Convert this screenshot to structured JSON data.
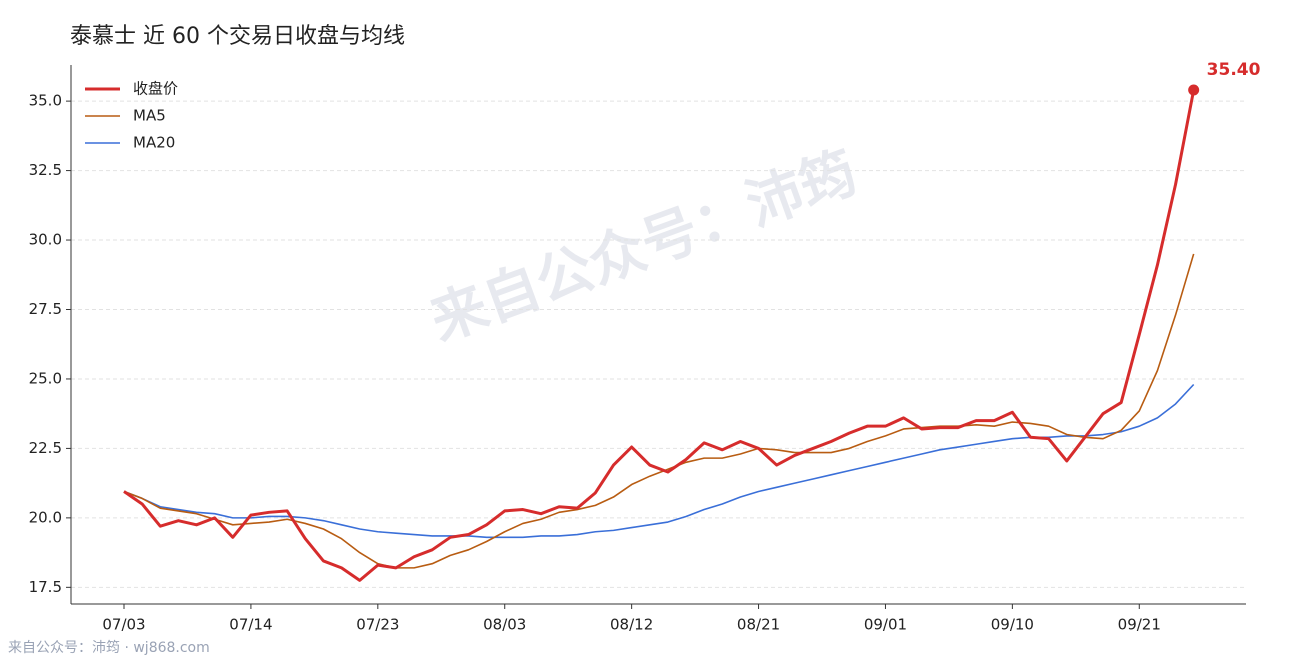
{
  "chart_data": {
    "type": "line",
    "title": "泰慕士 近 60 个交易日收盘与均线",
    "watermark": "来自公众号：沛筠",
    "footer": "来自公众号：沛筠 · wj868.com",
    "categories": [
      "07/03",
      null,
      null,
      null,
      null,
      null,
      null,
      "07/14",
      null,
      null,
      null,
      null,
      null,
      null,
      "07/23",
      null,
      null,
      null,
      null,
      null,
      null,
      "08/03",
      null,
      null,
      null,
      null,
      null,
      null,
      "08/12",
      null,
      null,
      null,
      null,
      null,
      null,
      "08/21",
      null,
      null,
      null,
      null,
      null,
      null,
      "09/01",
      null,
      null,
      null,
      null,
      null,
      null,
      "09/10",
      null,
      null,
      null,
      null,
      null,
      null,
      "09/21",
      null,
      null,
      null
    ],
    "series": [
      {
        "name": "收盘价",
        "color": "#d62c2c",
        "width": 3,
        "end_label": "35.40",
        "values": [
          20.95,
          20.5,
          19.7,
          19.9,
          19.75,
          20.0,
          19.3,
          20.1,
          20.2,
          20.25,
          19.25,
          18.45,
          18.2,
          17.75,
          18.3,
          18.2,
          18.6,
          18.85,
          19.3,
          19.4,
          19.75,
          20.25,
          20.3,
          20.15,
          20.4,
          20.35,
          20.9,
          21.9,
          22.55,
          21.9,
          21.65,
          22.1,
          22.7,
          22.45,
          22.75,
          22.5,
          21.9,
          22.25,
          22.5,
          22.75,
          23.05,
          23.3,
          23.3,
          23.6,
          23.2,
          23.25,
          23.25,
          23.5,
          23.5,
          23.8,
          22.9,
          22.85,
          22.05,
          22.9,
          23.75,
          24.15,
          26.6,
          29.1,
          32.0,
          35.4
        ]
      },
      {
        "name": "MA5",
        "color": "#b85c12",
        "width": 1.6,
        "values": [
          20.95,
          20.7,
          20.35,
          20.25,
          20.15,
          19.95,
          19.75,
          19.8,
          19.85,
          19.95,
          19.8,
          19.6,
          19.25,
          18.75,
          18.35,
          18.2,
          18.2,
          18.35,
          18.65,
          18.85,
          19.15,
          19.5,
          19.8,
          19.95,
          20.2,
          20.3,
          20.45,
          20.75,
          21.2,
          21.5,
          21.75,
          22.0,
          22.15,
          22.15,
          22.3,
          22.5,
          22.45,
          22.35,
          22.35,
          22.35,
          22.5,
          22.75,
          22.95,
          23.2,
          23.25,
          23.3,
          23.3,
          23.35,
          23.3,
          23.45,
          23.4,
          23.3,
          23.0,
          22.9,
          22.85,
          23.15,
          23.85,
          25.3,
          27.3,
          29.5
        ]
      },
      {
        "name": "MA20",
        "color": "#3a6fd8",
        "width": 1.6,
        "values": [
          20.95,
          20.7,
          20.4,
          20.3,
          20.2,
          20.15,
          20.0,
          20.0,
          20.05,
          20.05,
          20.0,
          19.9,
          19.75,
          19.6,
          19.5,
          19.45,
          19.4,
          19.35,
          19.35,
          19.35,
          19.3,
          19.3,
          19.3,
          19.35,
          19.35,
          19.4,
          19.5,
          19.55,
          19.65,
          19.75,
          19.85,
          20.05,
          20.3,
          20.5,
          20.75,
          20.95,
          21.1,
          21.25,
          21.4,
          21.55,
          21.7,
          21.85,
          22.0,
          22.15,
          22.3,
          22.45,
          22.55,
          22.65,
          22.75,
          22.85,
          22.9,
          22.9,
          22.95,
          22.95,
          23.0,
          23.1,
          23.3,
          23.6,
          24.1,
          24.8
        ]
      }
    ],
    "ylim": [
      16.9,
      36.3
    ],
    "yticks": [
      17.5,
      {
        "value": 20,
        "label": "20.0"
      },
      22.5,
      {
        "value": 25,
        "label": "25.0"
      },
      27.5,
      {
        "value": 30,
        "label": "30.0"
      },
      32.5,
      {
        "value": 35,
        "label": "35.0"
      }
    ],
    "grid": true,
    "legend": "upper left"
  }
}
